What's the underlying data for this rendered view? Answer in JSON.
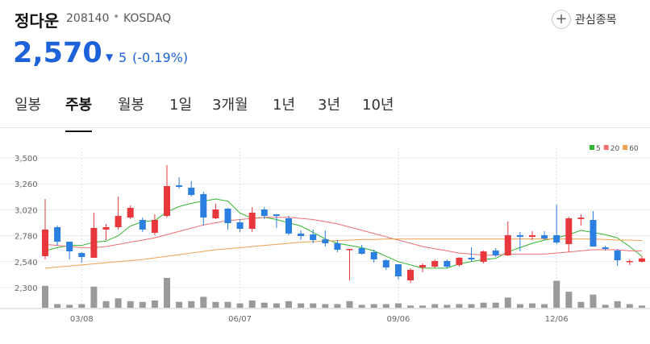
{
  "header": {
    "name": "정다운",
    "code": "208140",
    "market": "KOSDAQ",
    "watch": "관심종목",
    "price": "2,570",
    "change": "5",
    "change_pct": "(-0.19%)"
  },
  "tabs": [
    "일봉",
    "주봉",
    "월봉",
    "1일",
    "3개월",
    "1년",
    "3년",
    "10년"
  ],
  "active_tab": 1,
  "chart_data": {
    "type": "candlestick",
    "categories": [
      null,
      null,
      null,
      "03/08",
      null,
      null,
      null,
      null,
      null,
      null,
      null,
      null,
      null,
      null,
      null,
      null,
      "06/07",
      null,
      null,
      null,
      null,
      null,
      null,
      null,
      null,
      null,
      null,
      null,
      null,
      "09/06",
      null,
      null,
      null,
      null,
      null,
      null,
      null,
      null,
      null,
      null,
      null,
      null,
      "12/06",
      null,
      null,
      null,
      null,
      null,
      null,
      null
    ],
    "ohlc": {
      "open": [
        2591,
        2859,
        2725,
        2620,
        2576,
        2837,
        2859,
        2948,
        2926,
        2807,
        2963,
        3247,
        3224,
        3165,
        2941,
        3030,
        2904,
        2844,
        3023,
        2978,
        2941,
        2800,
        2792,
        2747,
        2710,
        2650,
        2665,
        2628,
        2553,
        2516,
        2367,
        2487,
        2494,
        2546,
        2509,
        2576,
        2539,
        2643,
        2598,
        2785,
        2770,
        2785,
        2785,
        2702,
        2934,
        2926,
        2673,
        2643,
        2539,
        2539
      ],
      "high": [
        3120,
        2874,
        2725,
        2628,
        2993,
        2889,
        3142,
        3060,
        2948,
        2978,
        3433,
        3321,
        3284,
        3187,
        3075,
        3038,
        2934,
        3045,
        3045,
        2978,
        2963,
        2829,
        2837,
        2829,
        2740,
        2658,
        2695,
        2650,
        2561,
        2516,
        2479,
        2524,
        2561,
        2561,
        2583,
        2673,
        2643,
        2665,
        2911,
        2815,
        2822,
        2822,
        3068,
        2956,
        2978,
        3008,
        2688,
        2658,
        2561,
        2591
      ],
      "low": [
        2561,
        2688,
        2561,
        2531,
        2576,
        2740,
        2837,
        2934,
        2815,
        2785,
        2948,
        3217,
        3142,
        2874,
        2934,
        2837,
        2815,
        2815,
        2934,
        2852,
        2785,
        2740,
        2710,
        2680,
        2628,
        2367,
        2606,
        2531,
        2464,
        2375,
        2345,
        2442,
        2479,
        2479,
        2494,
        2539,
        2524,
        2583,
        2591,
        2635,
        2740,
        2740,
        2702,
        2628,
        2874,
        2680,
        2643,
        2501,
        2509,
        2531
      ],
      "close": [
        2837,
        2725,
        2635,
        2583,
        2852,
        2859,
        2963,
        3038,
        2837,
        2926,
        3239,
        3232,
        3157,
        2948,
        3023,
        2896,
        2844,
        2993,
        2963,
        2963,
        2800,
        2777,
        2740,
        2710,
        2650,
        2658,
        2613,
        2561,
        2487,
        2404,
        2464,
        2509,
        2546,
        2494,
        2576,
        2561,
        2635,
        2598,
        2785,
        2770,
        2785,
        2755,
        2717,
        2941,
        2948,
        2680,
        2658,
        2553,
        2546,
        2570
      ]
    },
    "up_color": "#e8383d",
    "down_color": "#2a7fe0",
    "series": [
      {
        "name": "5",
        "color": "#2fb52f",
        "values": [
          2640,
          2670,
          2690,
          2690,
          2720,
          2730,
          2780,
          2870,
          2910,
          2920,
          3000,
          3050,
          3080,
          3100,
          3120,
          3100,
          2990,
          2940,
          2950,
          2930,
          2900,
          2870,
          2810,
          2750,
          2710,
          2690,
          2670,
          2640,
          2590,
          2540,
          2510,
          2480,
          2480,
          2480,
          2520,
          2540,
          2560,
          2570,
          2630,
          2670,
          2710,
          2740,
          2760,
          2790,
          2830,
          2810,
          2790,
          2760,
          2680,
          2590
        ]
      },
      {
        "name": "20",
        "color": "#f07070",
        "values": [
          2700,
          2690,
          2680,
          2670,
          2670,
          2680,
          2700,
          2720,
          2740,
          2760,
          2790,
          2820,
          2850,
          2880,
          2900,
          2920,
          2930,
          2940,
          2950,
          2950,
          2950,
          2940,
          2930,
          2910,
          2890,
          2860,
          2830,
          2800,
          2770,
          2740,
          2710,
          2680,
          2660,
          2640,
          2620,
          2610,
          2600,
          2600,
          2610,
          2610,
          2610,
          2610,
          2620,
          2630,
          2640,
          2650,
          2650,
          2650,
          2640,
          2640
        ]
      },
      {
        "name": "60",
        "color": "#f0a050",
        "values": [
          2480,
          2490,
          2500,
          2510,
          2520,
          2530,
          2540,
          2550,
          2560,
          2575,
          2590,
          2605,
          2620,
          2635,
          2650,
          2660,
          2670,
          2680,
          2690,
          2700,
          2710,
          2720,
          2725,
          2730,
          2735,
          2740,
          2745,
          2745,
          2750,
          2750,
          2750,
          2750,
          2750,
          2750,
          2750,
          2750,
          2750,
          2750,
          2750,
          2750,
          2750,
          2750,
          2750,
          2750,
          2750,
          2750,
          2745,
          2740,
          2740,
          2735
        ]
      }
    ],
    "volume": [
      30,
      5,
      4,
      5,
      29,
      9,
      13,
      9,
      8,
      10,
      41,
      8,
      9,
      15,
      8,
      8,
      6,
      10,
      7,
      6,
      9,
      6,
      6,
      5,
      5,
      9,
      4,
      5,
      5,
      6,
      3,
      3,
      5,
      4,
      5,
      5,
      7,
      7,
      14,
      5,
      6,
      5,
      37,
      22,
      8,
      18,
      4,
      9,
      5,
      3
    ],
    "volume_color": "#9a9a9a",
    "vlim": [
      0,
      42
    ],
    "ylim": [
      2300,
      3500
    ],
    "yticks": [
      {
        "value": 2300,
        "label": "2,300"
      },
      {
        "value": 2540,
        "label": "2,540"
      },
      {
        "value": 2780,
        "label": "2,780"
      },
      {
        "value": 3020,
        "label": "3,020"
      },
      {
        "value": 3260,
        "label": "3,260"
      },
      {
        "value": 3500,
        "label": "3,500"
      }
    ],
    "grid": true,
    "legend": "top-right"
  }
}
